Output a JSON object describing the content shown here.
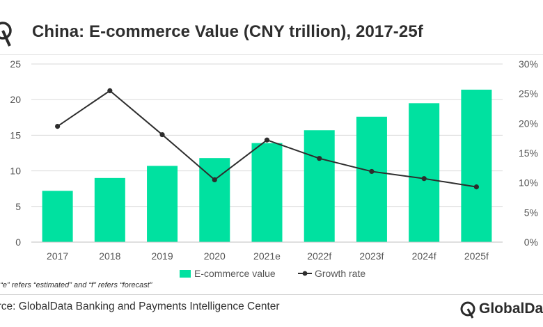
{
  "header": {
    "title": "China: E-commerce Value (CNY trillion), 2017-25f"
  },
  "footer": {
    "note": "e: “e” refers “estimated” and “f” refers “forecast”",
    "source": "urce: GlobalData Banking and Payments Intelligence Center",
    "brand": "GlobalDat"
  },
  "colors": {
    "bar": "#00e1a0",
    "line": "#2d2d2d",
    "grid": "#d9d9d9"
  },
  "chart_data": {
    "type": "bar",
    "categories": [
      "2017",
      "2018",
      "2019",
      "2020",
      "2021e",
      "2022f",
      "2023f",
      "2024f",
      "2025f"
    ],
    "series": [
      {
        "name": "E-commerce value",
        "type": "bar",
        "axis": "left",
        "values": [
          7.2,
          9.0,
          10.7,
          11.8,
          13.9,
          15.7,
          17.6,
          19.5,
          21.4
        ]
      },
      {
        "name": "Growth rate",
        "type": "line",
        "axis": "right",
        "values": [
          19.5,
          25.5,
          18.1,
          10.5,
          17.2,
          14.1,
          11.9,
          10.7,
          9.3
        ]
      }
    ],
    "yaxis_left": {
      "ticks": [
        "0",
        "5",
        "10",
        "15",
        "20",
        "25"
      ],
      "ylim": [
        0,
        25
      ]
    },
    "yaxis_right": {
      "ticks": [
        "0%",
        "5%",
        "10%",
        "15%",
        "20%",
        "25%",
        "30%"
      ],
      "ylim": [
        0,
        30
      ]
    },
    "grid": true,
    "legend_position": "bottom"
  }
}
